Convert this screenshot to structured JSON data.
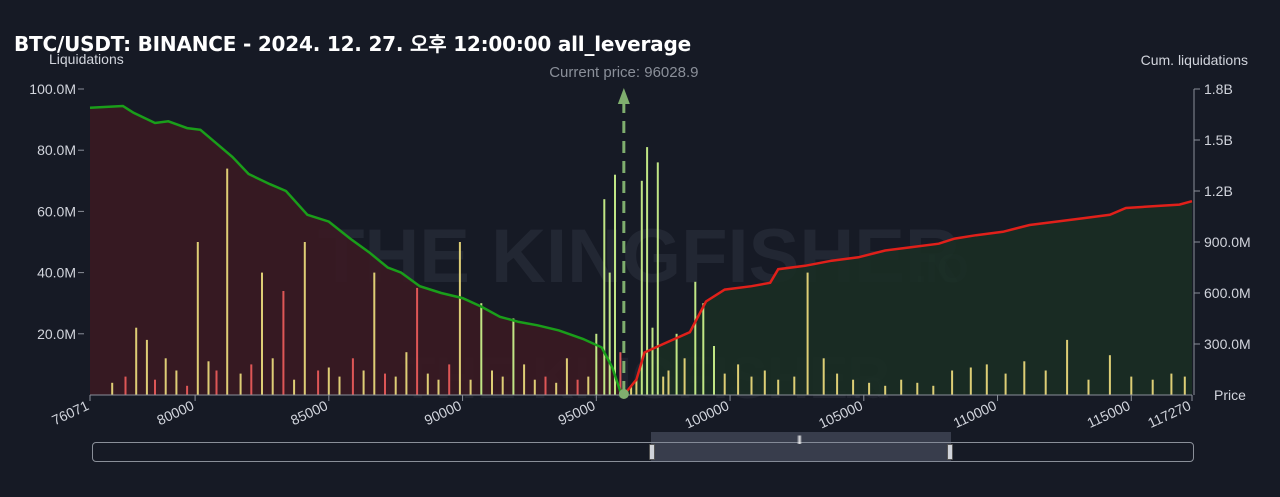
{
  "header": {
    "title": "BTC/USDT: BINANCE - 2024. 12. 27. 오후 12:00:00 all_leverage",
    "left_axis_title": "Liquidations",
    "right_axis_title": "Cum. liquidations",
    "price_axis_title": "Price",
    "current_price_label": "Current price: 96028.9"
  },
  "watermark": {
    "brand": "THE KINGFISHER",
    "suffix": ".IO"
  },
  "colors": {
    "background": "#161a25",
    "short_line": "#e0201a",
    "long_line": "#1a9e1a",
    "long_area": "#3a1a22",
    "short_area": "#1a2e24",
    "bar_yellow": "#e8d77a",
    "bar_green": "#c9f08a",
    "bar_red": "#e85a5a",
    "current_price": "#7fae6e"
  },
  "chart_data": {
    "type": "bar",
    "title": "BTC/USDT: BINANCE - 2024. 12. 27. 오후 12:00:00 all_leverage",
    "xlabel": "Price",
    "ylabel": "Liquidations",
    "y2label": "Cum. liquidations",
    "xlim": [
      76071,
      117270
    ],
    "ylim": [
      0,
      100000000
    ],
    "y2lim": [
      0,
      1800000000
    ],
    "x_tick_labels": [
      "76071",
      "80000",
      "85000",
      "90000",
      "95000",
      "100000",
      "105000",
      "110000",
      "115000",
      "117270"
    ],
    "y_tick_labels": [
      "20.0M",
      "40.0M",
      "60.0M",
      "80.0M",
      "100.0M"
    ],
    "y2_tick_labels": [
      "300.0M",
      "600.0M",
      "900.0M",
      "1.2B",
      "1.5B",
      "1.8B"
    ],
    "current_price": 96028.9,
    "series": [
      {
        "type": "bar",
        "x": [
          76900,
          77400,
          77800,
          78200,
          78500,
          78900,
          79300,
          79700,
          80100,
          80500,
          80800,
          81200,
          81700,
          82100,
          82500,
          82900,
          83300,
          83700,
          84100,
          84600,
          85000,
          85400,
          85900,
          86300,
          86700,
          87100,
          87500,
          87900,
          88300,
          88700,
          89100,
          89500,
          89900,
          90300,
          90700,
          91100,
          91500,
          91900,
          92300,
          92700,
          93100,
          93500,
          93900,
          94300,
          94700,
          95000,
          95300,
          95500,
          95700,
          95900,
          96300,
          96500,
          96700,
          96900,
          97100,
          97300,
          97500,
          97700,
          98000,
          98300,
          98700,
          99000,
          99400,
          99800,
          100300,
          100800,
          101300,
          101800,
          102400,
          102900,
          103500,
          104000,
          104600,
          105200,
          105800,
          106400,
          107000,
          107600,
          108300,
          109000,
          109600,
          110300,
          111000,
          111800,
          112600,
          113400,
          114200,
          115000,
          115800,
          116500,
          117000
        ],
        "values": [
          4000000,
          6000000,
          22000000,
          18000000,
          5000000,
          12000000,
          8000000,
          3000000,
          50000000,
          11000000,
          8000000,
          74000000,
          7000000,
          10000000,
          40000000,
          12000000,
          34000000,
          5000000,
          50000000,
          8000000,
          9000000,
          6000000,
          12000000,
          8000000,
          40000000,
          7000000,
          6000000,
          14000000,
          35000000,
          7000000,
          5000000,
          10000000,
          50000000,
          5000000,
          30000000,
          8000000,
          6000000,
          25000000,
          10000000,
          5000000,
          6000000,
          4000000,
          12000000,
          5000000,
          6000000,
          20000000,
          64000000,
          40000000,
          72000000,
          14000000,
          3000000,
          5000000,
          70000000,
          81000000,
          22000000,
          76000000,
          6000000,
          8000000,
          20000000,
          12000000,
          37000000,
          30000000,
          16000000,
          7000000,
          10000000,
          6000000,
          8000000,
          5000000,
          6000000,
          40000000,
          12000000,
          7000000,
          5000000,
          4000000,
          3000000,
          5000000,
          4000000,
          3000000,
          8000000,
          9000000,
          10000000,
          7000000,
          11000000,
          8000000,
          18000000,
          5000000,
          13000000,
          6000000,
          5000000,
          7000000,
          6000000
        ]
      },
      {
        "name": "long_cum",
        "type": "line",
        "x": [
          76071,
          77300,
          77700,
          78500,
          79000,
          79700,
          80200,
          80800,
          81400,
          82000,
          82800,
          83400,
          84200,
          85000,
          85800,
          86500,
          87200,
          87700,
          88400,
          89200,
          90000,
          90700,
          91400,
          92100,
          92800,
          93600,
          94500,
          95200,
          95600,
          95900,
          96028.9
        ],
        "values": [
          1690000000,
          1700000000,
          1660000000,
          1600000000,
          1610000000,
          1570000000,
          1560000000,
          1480000000,
          1400000000,
          1300000000,
          1240000000,
          1200000000,
          1060000000,
          1020000000,
          920000000,
          840000000,
          750000000,
          720000000,
          640000000,
          600000000,
          570000000,
          520000000,
          460000000,
          430000000,
          410000000,
          380000000,
          330000000,
          280000000,
          160000000,
          20000000,
          0
        ]
      },
      {
        "name": "short_cum",
        "type": "line",
        "x": [
          96028.9,
          96500,
          96800,
          97500,
          98500,
          99100,
          99800,
          100800,
          101500,
          101800,
          102800,
          103800,
          104800,
          105800,
          106800,
          107800,
          108400,
          109200,
          110200,
          111200,
          112200,
          113200,
          114200,
          114800,
          115800,
          116800,
          117270
        ],
        "values": [
          0,
          90000000,
          250000000,
          300000000,
          370000000,
          550000000,
          620000000,
          640000000,
          660000000,
          740000000,
          760000000,
          790000000,
          810000000,
          850000000,
          870000000,
          890000000,
          920000000,
          940000000,
          960000000,
          1000000000,
          1020000000,
          1040000000,
          1060000000,
          1100000000,
          1110000000,
          1120000000,
          1140000000
        ]
      }
    ],
    "grid": false,
    "legend": "none"
  }
}
